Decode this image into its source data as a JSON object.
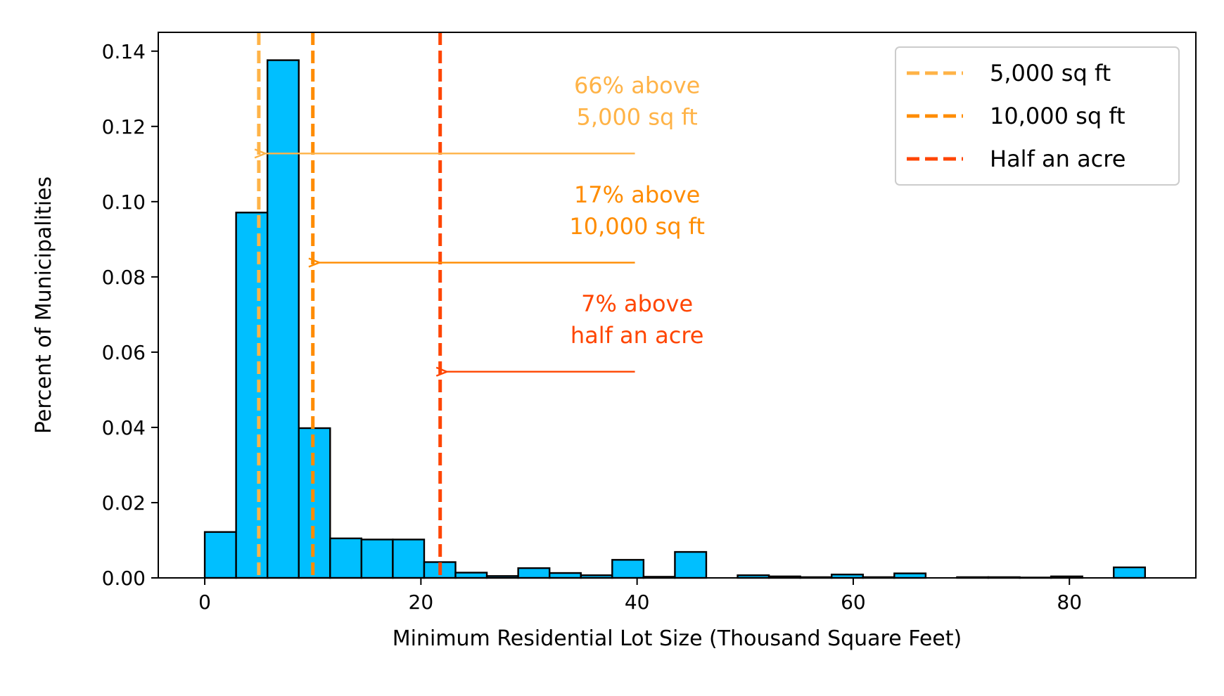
{
  "chart_data": {
    "type": "bar",
    "subtype": "histogram",
    "xlabel": "Minimum Residential Lot Size (Thousand Square Feet)",
    "ylabel": "Percent of Municipalities",
    "xlim": [
      -4.3,
      91.7
    ],
    "ylim": [
      0,
      0.145
    ],
    "xticks": [
      0,
      20,
      40,
      60,
      80
    ],
    "xtick_labels": [
      "0",
      "20",
      "40",
      "60",
      "80"
    ],
    "yticks": [
      0,
      0.02,
      0.04,
      0.06,
      0.08,
      0.1,
      0.12,
      0.14
    ],
    "ytick_labels": [
      "0.00",
      "0.02",
      "0.04",
      "0.06",
      "0.08",
      "0.10",
      "0.12",
      "0.14"
    ],
    "bar_color": "#00bfff",
    "bin_width": 2.9,
    "bins_start": [
      0,
      2.9,
      5.8,
      8.7,
      11.6,
      14.5,
      17.4,
      20.3,
      23.2,
      26.1,
      29,
      31.9,
      34.8,
      37.7,
      40.6,
      43.5,
      46.4,
      49.3,
      52.2,
      55.1,
      58,
      60.9,
      63.8,
      66.7,
      69.6,
      72.5,
      75.4,
      78.3,
      81.2,
      84.1
    ],
    "values": [
      0.0122,
      0.0971,
      0.1376,
      0.0398,
      0.0105,
      0.0102,
      0.0102,
      0.0042,
      0.0014,
      0.0005,
      0.0026,
      0.0013,
      0.0007,
      0.0048,
      0.0003,
      0.0069,
      0,
      0.0007,
      0.0004,
      0.0002,
      0.0009,
      0.0002,
      0.0012,
      0,
      0.0002,
      0.0002,
      0.0001,
      0.0004,
      0,
      0.0028
    ],
    "vlines": [
      {
        "x": 5,
        "color": "#ffb347",
        "label": "5,000 sq ft"
      },
      {
        "x": 10,
        "color": "#ff8c00",
        "label": "10,000 sq ft"
      },
      {
        "x": 21.78,
        "color": "#ff4500",
        "label": "Half an acre"
      }
    ],
    "annotations": [
      {
        "lines": [
          "66% above",
          "5,000 sq ft"
        ],
        "color": "#ffb347",
        "text_x": 40,
        "text_y": 0.1288,
        "arrow_from": [
          39.8,
          0.1128
        ],
        "arrow_to": [
          5.6,
          0.1128
        ]
      },
      {
        "lines": [
          "17% above",
          "10,000 sq ft"
        ],
        "color": "#ff8c00",
        "text_x": 40,
        "text_y": 0.0998,
        "arrow_from": [
          39.8,
          0.0838
        ],
        "arrow_to": [
          10.6,
          0.0838
        ]
      },
      {
        "lines": [
          "7% above",
          "half an acre"
        ],
        "color": "#ff4500",
        "text_x": 40,
        "text_y": 0.0708,
        "arrow_from": [
          39.8,
          0.0548
        ],
        "arrow_to": [
          22.4,
          0.0548
        ]
      }
    ],
    "legend": {
      "position": "top-right",
      "entries": [
        "5,000 sq ft",
        "10,000 sq ft",
        "Half an acre"
      ]
    },
    "grid": false
  }
}
